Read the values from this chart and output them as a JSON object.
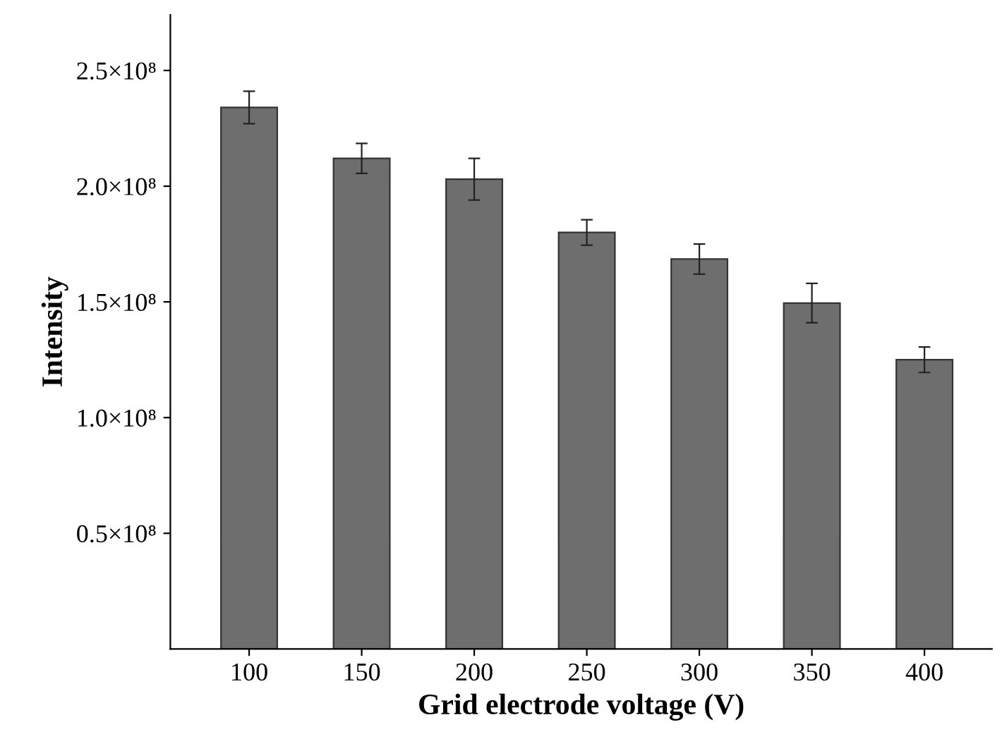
{
  "chart_data": {
    "type": "bar",
    "xlabel": "Grid electrode voltage (V)",
    "ylabel": "Intensity",
    "categories": [
      "100",
      "150",
      "200",
      "250",
      "300",
      "350",
      "400"
    ],
    "values": [
      234000000,
      212000000,
      203000000,
      180000000,
      168500000,
      149500000,
      125000000
    ],
    "errors": [
      7000000,
      6500000,
      9000000,
      5500000,
      6500000,
      8500000,
      5500000
    ],
    "color": "#6e6e6e",
    "ylim": [
      0,
      274000000
    ],
    "yticks": [
      {
        "value": 50000000,
        "label": "0.5×10⁸"
      },
      {
        "value": 100000000,
        "label": "1.0×10⁸"
      },
      {
        "value": 150000000,
        "label": "1.5×10⁸"
      },
      {
        "value": 200000000,
        "label": "2.0×10⁸"
      },
      {
        "value": 250000000,
        "label": "2.5×10⁸"
      }
    ],
    "grid": false,
    "legend": false
  }
}
